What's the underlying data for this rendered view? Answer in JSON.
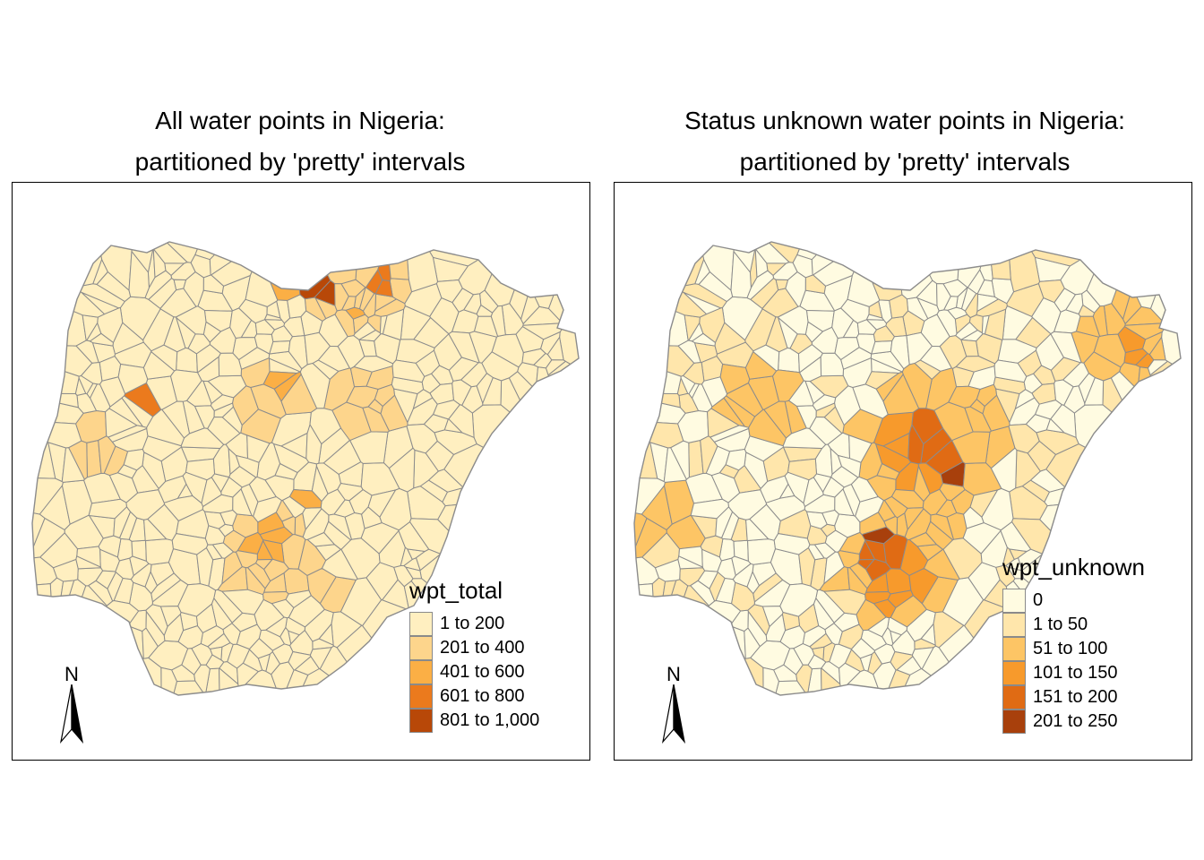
{
  "maps": [
    {
      "title_line1": "All water points in Nigeria:",
      "title_line2": "partitioned by 'pretty' intervals",
      "legend_title": "wpt_total",
      "legend": [
        {
          "label": "1 to 200",
          "color": "#ffefc0"
        },
        {
          "label": "201 to 400",
          "color": "#fdd58c"
        },
        {
          "label": "401 to 600",
          "color": "#fbaf45"
        },
        {
          "label": "601 to 800",
          "color": "#eb7a1d"
        },
        {
          "label": "801 to 1,000",
          "color": "#b84808"
        }
      ],
      "north_label": "N"
    },
    {
      "title_line1": "Status unknown water points in Nigeria:",
      "title_line2": "partitioned by 'pretty' intervals",
      "legend_title": "wpt_unknown",
      "legend": [
        {
          "label": "0",
          "color": "#fffbe1"
        },
        {
          "label": "1 to 50",
          "color": "#ffe6ab"
        },
        {
          "label": "51 to 100",
          "color": "#fdc565"
        },
        {
          "label": "101 to 150",
          "color": "#f79a2c"
        },
        {
          "label": "151 to 200",
          "color": "#e06b14"
        },
        {
          "label": "201 to 250",
          "color": "#a8400c"
        }
      ],
      "north_label": "N"
    }
  ],
  "style": {
    "border_color": "#8c8c8c"
  }
}
